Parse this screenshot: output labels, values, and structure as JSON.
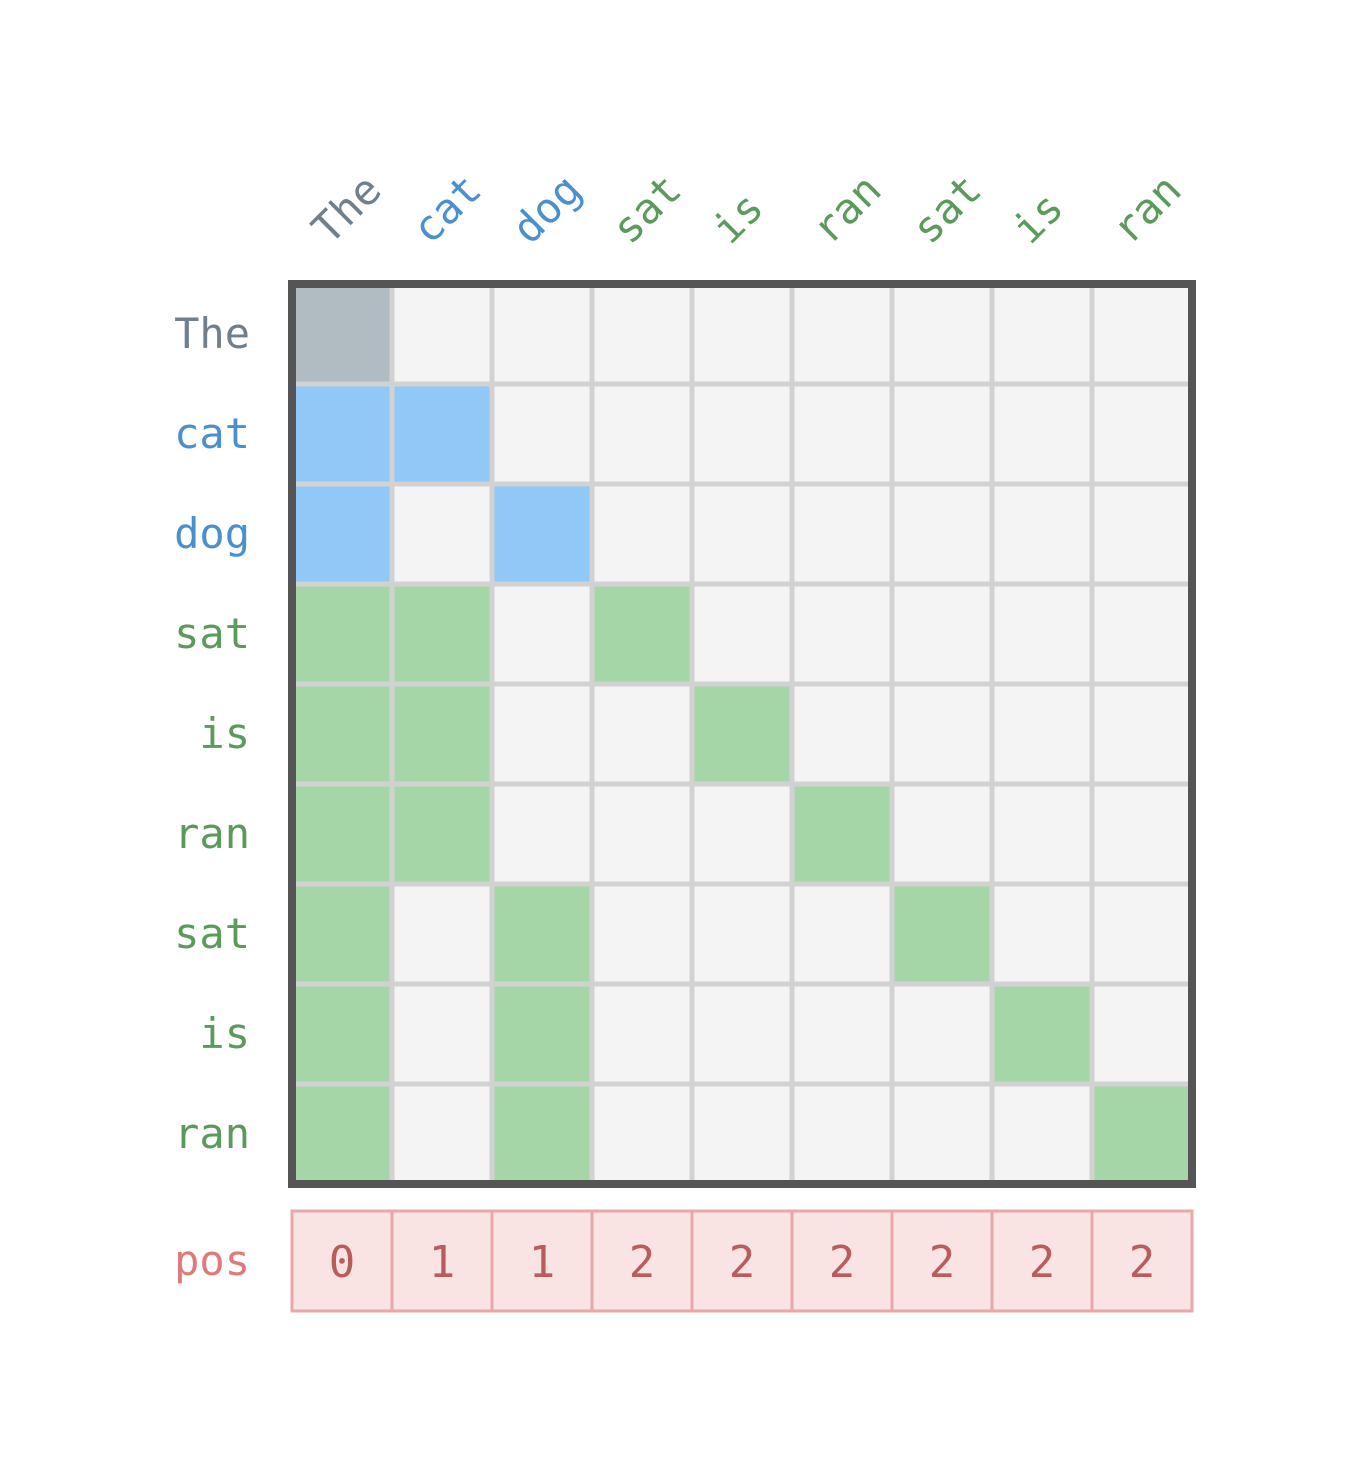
{
  "tokens": [
    "The",
    "cat",
    "dog",
    "sat",
    "is",
    "ran",
    "sat",
    "is",
    "ran"
  ],
  "token_groups": [
    "root",
    "branch",
    "branch",
    "leaf",
    "leaf",
    "leaf",
    "leaf",
    "leaf",
    "leaf"
  ],
  "mask": [
    [
      1,
      0,
      0,
      0,
      0,
      0,
      0,
      0,
      0
    ],
    [
      1,
      1,
      0,
      0,
      0,
      0,
      0,
      0,
      0
    ],
    [
      1,
      0,
      1,
      0,
      0,
      0,
      0,
      0,
      0
    ],
    [
      1,
      1,
      0,
      1,
      0,
      0,
      0,
      0,
      0
    ],
    [
      1,
      1,
      0,
      0,
      1,
      0,
      0,
      0,
      0
    ],
    [
      1,
      1,
      0,
      0,
      0,
      1,
      0,
      0,
      0
    ],
    [
      1,
      0,
      1,
      0,
      0,
      0,
      1,
      0,
      0
    ],
    [
      1,
      0,
      1,
      0,
      0,
      0,
      0,
      1,
      0
    ],
    [
      1,
      0,
      1,
      0,
      0,
      0,
      0,
      0,
      1
    ]
  ],
  "position_row": {
    "label": "pos",
    "values": [
      "0",
      "1",
      "1",
      "2",
      "2",
      "2",
      "2",
      "2",
      "2"
    ]
  },
  "colors": {
    "root_text": "#6f7f8c",
    "root_fill": "#b0bcc2",
    "branch_text": "#4a90d0",
    "branch_fill": "#90c8f8",
    "leaf_text": "#5a9a5a",
    "leaf_fill": "#a5d6a7",
    "empty_fill": "#f4f4f4",
    "grid_line": "#d2d2d2",
    "frame": "#555555",
    "pos_fill": "#fae3e3",
    "pos_border": "#e8a8a8",
    "pos_label": "#e07a7a",
    "pos_text": "#b85c5c"
  }
}
